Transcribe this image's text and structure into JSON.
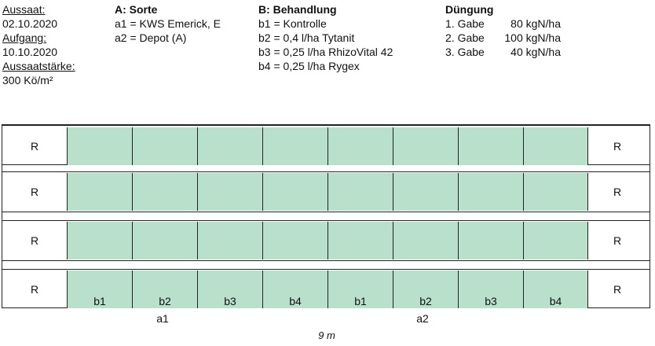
{
  "dates": {
    "aussaat_label": "Aussaat:",
    "aussaat_value": "02.10.2020",
    "aufgang_label": "Aufgang:",
    "aufgang_value": "10.10.2020",
    "staerke_label": "Aussaatstärke:",
    "staerke_value": "300 Kö/m²"
  },
  "sorte": {
    "heading": "A: Sorte",
    "items": [
      "a1 = KWS Emerick, E",
      "a2 = Depot (A)"
    ]
  },
  "behandlung": {
    "heading": "B: Behandlung",
    "items": [
      "b1 = Kontrolle",
      "b2 = 0,4 l/ha Tytanit",
      "b3 = 0,25 l/ha RhizoVital 42",
      "b4 = 0,25 l/ha Rygex"
    ]
  },
  "duengung": {
    "heading": "Düngung",
    "rows": [
      {
        "gabe": "1. Gabe",
        "amount": "80 kgN/ha"
      },
      {
        "gabe": "2. Gabe",
        "amount": "100 kgN/ha"
      },
      {
        "gabe": "3. Gabe",
        "amount": "40 kgN/ha"
      }
    ]
  },
  "field": {
    "border_label": "R",
    "plot_color": "#b9e0cb",
    "rows": 4,
    "plots_per_row": 8,
    "bottom_labels": [
      "b1",
      "b2",
      "b3",
      "b4",
      "b1",
      "b2",
      "b3",
      "b4"
    ],
    "sorte_labels": [
      "a1",
      "a2"
    ],
    "width_label": "9 m"
  }
}
